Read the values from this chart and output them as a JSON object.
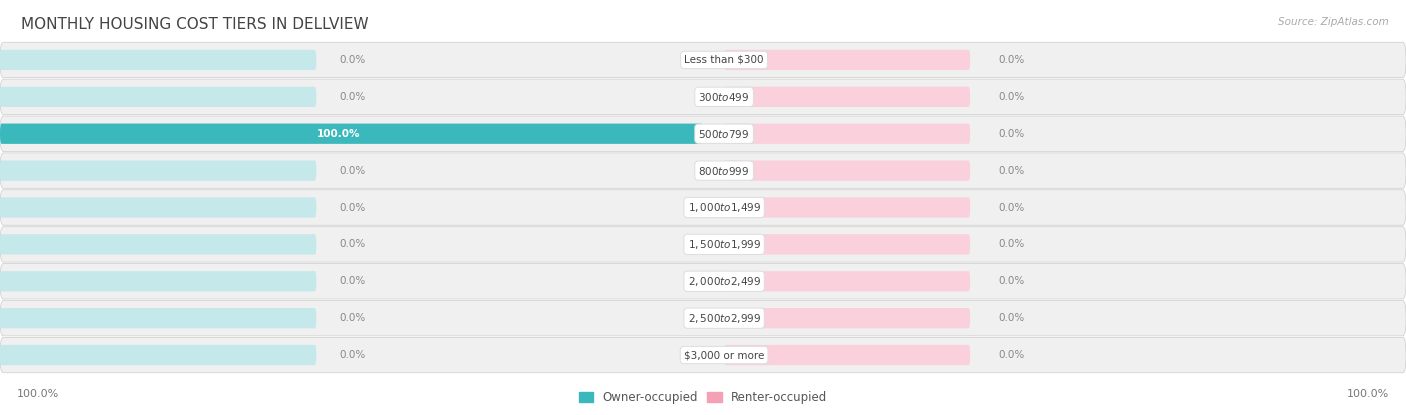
{
  "title": "MONTHLY HOUSING COST TIERS IN DELLVIEW",
  "source": "Source: ZipAtlas.com",
  "categories": [
    "Less than $300",
    "$300 to $499",
    "$500 to $799",
    "$800 to $999",
    "$1,000 to $1,499",
    "$1,500 to $1,999",
    "$2,000 to $2,499",
    "$2,500 to $2,999",
    "$3,000 or more"
  ],
  "owner_values": [
    0.0,
    0.0,
    100.0,
    0.0,
    0.0,
    0.0,
    0.0,
    0.0,
    0.0
  ],
  "renter_values": [
    0.0,
    0.0,
    0.0,
    0.0,
    0.0,
    0.0,
    0.0,
    0.0,
    0.0
  ],
  "owner_color": "#3ab8bc",
  "renter_color": "#f4a0b5",
  "bar_bg_owner_color": "#c5e8ea",
  "bar_bg_renter_color": "#f9d0dc",
  "row_bg_color": "#f0f0f0",
  "title_color": "#555555",
  "text_color": "#777777",
  "source_color": "#aaaaaa",
  "axis_max": 100.0,
  "bar_height": 0.55,
  "figsize": [
    14.06,
    4.15
  ],
  "dpi": 100,
  "owner_label_inside_color": "#ffffff",
  "value_label_color": "#888888",
  "legend_owner_label": "Owner-occupied",
  "legend_renter_label": "Renter-occupied",
  "bottom_left_label": "100.0%",
  "bottom_right_label": "100.0%"
}
